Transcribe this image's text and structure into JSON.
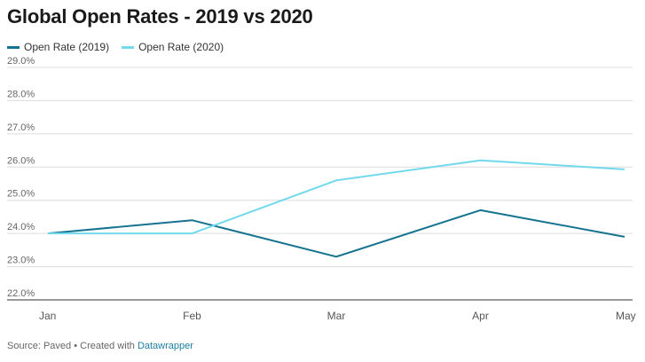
{
  "chart_data": {
    "type": "line",
    "title": "Global Open Rates - 2019 vs 2020",
    "categories": [
      "Jan",
      "Feb",
      "Mar",
      "Apr",
      "May"
    ],
    "series": [
      {
        "name": "Open Rate (2019)",
        "color": "#15738f",
        "values": [
          24.0,
          24.4,
          23.3,
          24.7,
          23.9
        ]
      },
      {
        "name": "Open Rate (2020)",
        "color": "#72d9ec",
        "values": [
          24.0,
          24.0,
          25.6,
          26.2,
          25.93
        ]
      }
    ],
    "ylim": [
      22,
      29
    ],
    "yticks": [
      "22.0%",
      "23.0%",
      "24.0%",
      "25.0%",
      "26.0%",
      "27.0%",
      "28.0%",
      "29.0%"
    ],
    "grid": true,
    "legend": "top-left"
  },
  "footer": {
    "prefix": "Source: Paved • Created with ",
    "link": "Datawrapper"
  }
}
